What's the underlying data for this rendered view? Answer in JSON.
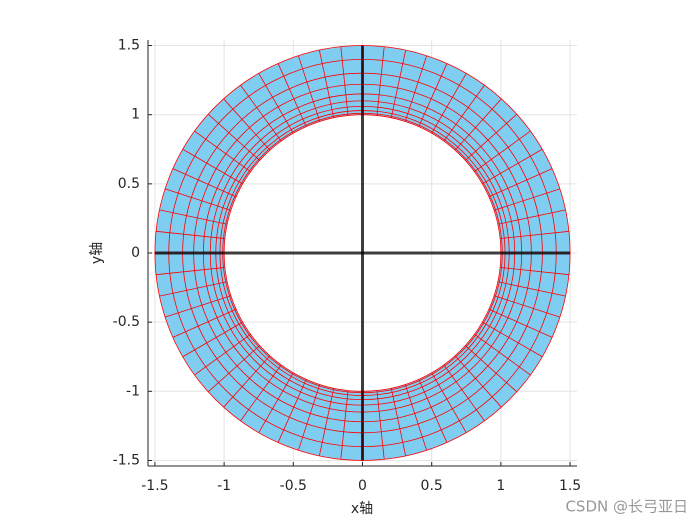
{
  "chart_data": {
    "type": "annulus-mesh",
    "radii": [
      1,
      1.01,
      1.03,
      1.06,
      1.1,
      1.15,
      1.22,
      1.3,
      1.4,
      1.5
    ],
    "theta_divisions": 60,
    "fill_color": "#80cdf2",
    "edge_color": "#ff0000",
    "lines": [
      {
        "x": [
          -1.5,
          1.5
        ],
        "y": [
          0,
          0
        ],
        "color": "#000000"
      },
      {
        "x": [
          0,
          0
        ],
        "y": [
          -1.5,
          1.5
        ],
        "color": "#000000"
      }
    ],
    "xlabel": "x轴",
    "ylabel": "y轴",
    "xlim": [
      -1.55,
      1.55
    ],
    "ylim": [
      -1.54,
      1.54
    ],
    "xticks": [
      -1.5,
      -1,
      -0.5,
      0,
      0.5,
      1,
      1.5
    ],
    "yticks": [
      -1.5,
      -1,
      -0.5,
      0,
      0.5,
      1,
      1.5
    ],
    "grid": true,
    "watermark": "CSDN @长弓亚日"
  }
}
